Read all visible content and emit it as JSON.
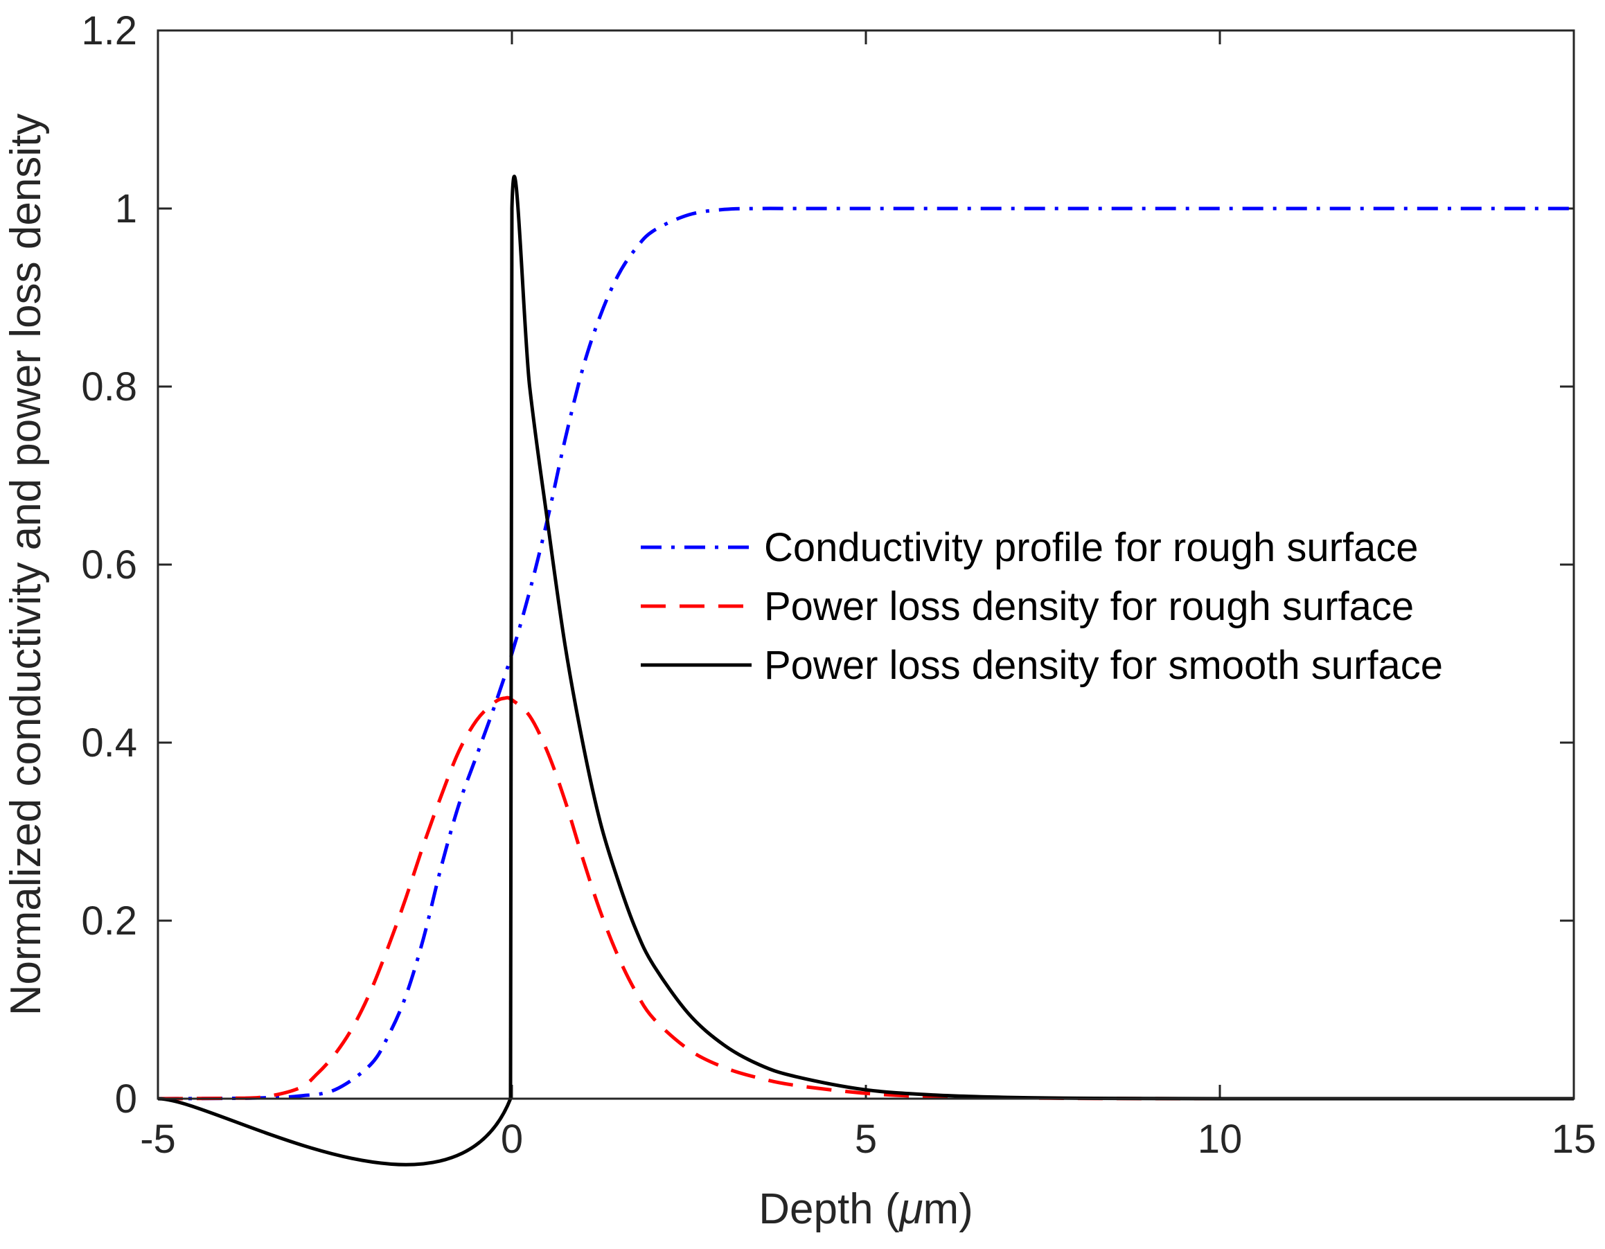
{
  "chart_data": {
    "type": "line",
    "title": "",
    "xlabel": "Depth (μm)",
    "xlabel_parts": {
      "prefix": "Depth (",
      "mu": "μ",
      "suffix": "m)"
    },
    "ylabel": "Normalized conductivity and power loss density",
    "xlim": [
      -5,
      15
    ],
    "ylim": [
      0,
      1.2
    ],
    "xticks": [
      -5,
      0,
      5,
      10,
      15
    ],
    "xtick_labels": [
      "-5",
      "0",
      "5",
      "10",
      "15"
    ],
    "yticks": [
      0,
      0.2,
      0.4,
      0.6,
      0.8,
      1,
      1.2
    ],
    "ytick_labels": [
      "0",
      "0.2",
      "0.4",
      "0.6",
      "0.8",
      "1",
      "1.2"
    ],
    "grid": false,
    "legend_position": "center-right",
    "series": [
      {
        "name": "Conductivity profile for rough surface",
        "color": "#0000ff",
        "style": "dash-dot",
        "x": [
          -5,
          -4,
          -3.5,
          -3,
          -2.5,
          -2,
          -1.75,
          -1.5,
          -1.25,
          -1,
          -0.75,
          -0.5,
          -0.25,
          0,
          0.25,
          0.5,
          0.75,
          1,
          1.25,
          1.5,
          1.75,
          2,
          2.5,
          3,
          3.5,
          4,
          5,
          7,
          10,
          15
        ],
        "values": [
          0,
          0.0003,
          0.001,
          0.003,
          0.01,
          0.038,
          0.07,
          0.115,
          0.18,
          0.26,
          0.33,
          0.385,
          0.44,
          0.5,
          0.57,
          0.65,
          0.74,
          0.82,
          0.88,
          0.925,
          0.955,
          0.975,
          0.993,
          0.999,
          1,
          1,
          1,
          1,
          1,
          1
        ]
      },
      {
        "name": "Power loss density for rough surface",
        "color": "#ff0000",
        "style": "dash",
        "x": [
          -5,
          -4,
          -3.5,
          -3,
          -2.75,
          -2.5,
          -2.25,
          -2,
          -1.75,
          -1.5,
          -1.25,
          -1,
          -0.75,
          -0.5,
          -0.25,
          -0.1,
          0,
          0.25,
          0.5,
          0.75,
          1,
          1.25,
          1.5,
          1.75,
          2,
          2.5,
          3,
          3.5,
          4,
          5,
          6,
          7,
          8,
          10,
          15
        ],
        "values": [
          0,
          0.0005,
          0.002,
          0.012,
          0.028,
          0.05,
          0.08,
          0.12,
          0.17,
          0.225,
          0.285,
          0.34,
          0.39,
          0.425,
          0.445,
          0.45,
          0.448,
          0.43,
          0.39,
          0.335,
          0.27,
          0.21,
          0.16,
          0.12,
          0.09,
          0.055,
          0.035,
          0.023,
          0.015,
          0.006,
          0.002,
          0.001,
          0.0003,
          0,
          0
        ]
      },
      {
        "name": "Power loss density for smooth surface",
        "color": "#000000",
        "style": "solid",
        "x": [
          -5,
          -0.02,
          0,
          0.25,
          0.5,
          0.75,
          1,
          1.25,
          1.5,
          1.75,
          2,
          2.5,
          3,
          3.5,
          4,
          5,
          6,
          7,
          8,
          10,
          15
        ],
        "values": [
          0,
          0,
          1,
          0.8,
          0.65,
          0.51,
          0.4,
          0.31,
          0.245,
          0.19,
          0.15,
          0.095,
          0.06,
          0.038,
          0.025,
          0.01,
          0.004,
          0.0015,
          0.0005,
          0,
          0
        ]
      }
    ]
  }
}
